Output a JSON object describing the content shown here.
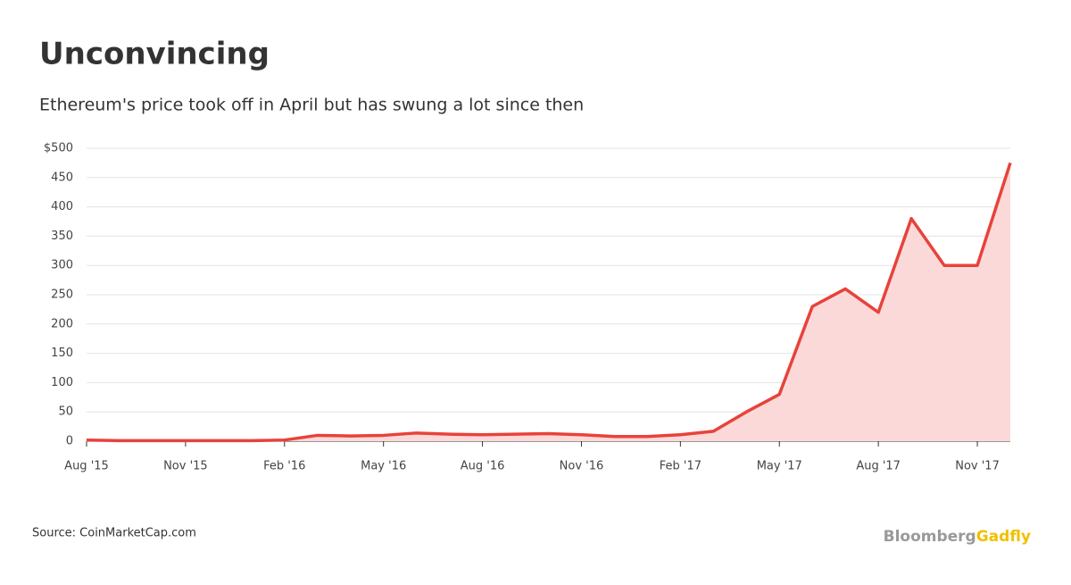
{
  "chart_data": {
    "type": "line",
    "title": "Unconvincing",
    "subtitle": "Ethereum's price took off in April but has swung a lot since then",
    "x": [
      "2015-08",
      "2015-09",
      "2015-10",
      "2015-11",
      "2015-12",
      "2016-01",
      "2016-02",
      "2016-03",
      "2016-04",
      "2016-05",
      "2016-06",
      "2016-07",
      "2016-08",
      "2016-09",
      "2016-10",
      "2016-11",
      "2016-12",
      "2017-01",
      "2017-02",
      "2017-03",
      "2017-04",
      "2017-05",
      "2017-06",
      "2017-07",
      "2017-08",
      "2017-09",
      "2017-10",
      "2017-11",
      "2017-12"
    ],
    "series": [
      {
        "name": "Ethereum price",
        "color": "#e8423a",
        "fill": "#fcd9d9",
        "values": [
          2,
          1,
          1,
          1,
          1,
          1,
          2,
          10,
          9,
          10,
          14,
          12,
          11,
          12,
          13,
          11,
          8,
          8,
          11,
          17,
          50,
          80,
          230,
          260,
          220,
          380,
          300,
          300,
          475
        ]
      }
    ],
    "xlim": [
      "2015-08",
      "2017-12"
    ],
    "xticks": [
      {
        "value": "2015-08",
        "label": "Aug '15"
      },
      {
        "value": "2015-11",
        "label": "Nov '15"
      },
      {
        "value": "2016-02",
        "label": "Feb '16"
      },
      {
        "value": "2016-05",
        "label": "May '16"
      },
      {
        "value": "2016-08",
        "label": "Aug '16"
      },
      {
        "value": "2016-11",
        "label": "Nov '16"
      },
      {
        "value": "2017-02",
        "label": "Feb '17"
      },
      {
        "value": "2017-05",
        "label": "May '17"
      },
      {
        "value": "2017-08",
        "label": "Aug '17"
      },
      {
        "value": "2017-11",
        "label": "Nov '17"
      }
    ],
    "ylim": [
      0,
      500
    ],
    "yticks": [
      0,
      50,
      100,
      150,
      200,
      250,
      300,
      350,
      400,
      450,
      {
        "value": 500,
        "label": "$500"
      }
    ],
    "grid": true
  },
  "footer": {
    "source": "Source: CoinMarketCap.com",
    "brand": "Bloomberg",
    "brand_accent": "Gadfly"
  }
}
